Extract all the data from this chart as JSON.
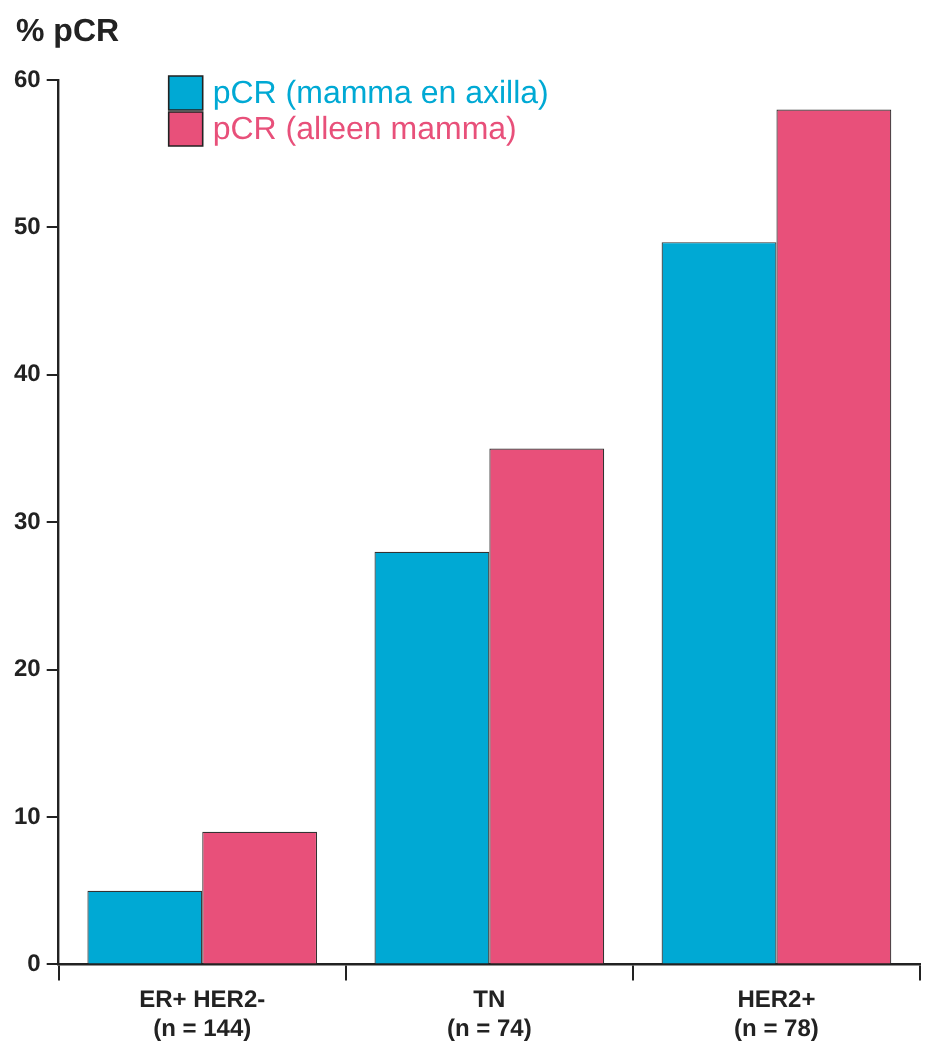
{
  "chart_data": {
    "type": "bar",
    "ylabel": "% pCR",
    "categories": [
      "ER+ HER2-\n(n = 144)",
      "TN\n(n = 74)",
      "HER2+\n(n = 78)"
    ],
    "series": [
      {
        "name": "pCR (mamma en axilla)",
        "color": "#00a9d4",
        "values": [
          5,
          28,
          49
        ]
      },
      {
        "name": "pCR (alleen mamma)",
        "color": "#e8507a",
        "values": [
          9,
          35,
          58
        ]
      }
    ],
    "ylim": [
      0,
      60
    ],
    "yticks": [
      0,
      10,
      20,
      30,
      40,
      50,
      60
    ],
    "grid": false,
    "legend": "top left"
  }
}
